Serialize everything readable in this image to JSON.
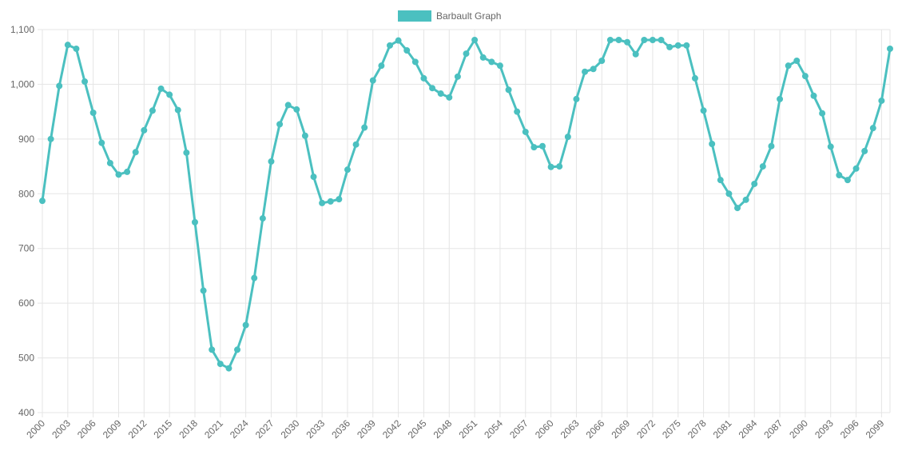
{
  "chart_data": {
    "type": "line",
    "x": [
      2000,
      2001,
      2002,
      2003,
      2004,
      2005,
      2006,
      2007,
      2008,
      2009,
      2010,
      2011,
      2012,
      2013,
      2014,
      2015,
      2016,
      2017,
      2018,
      2019,
      2020,
      2021,
      2022,
      2023,
      2024,
      2025,
      2026,
      2027,
      2028,
      2029,
      2030,
      2031,
      2032,
      2033,
      2034,
      2035,
      2036,
      2037,
      2038,
      2039,
      2040,
      2041,
      2042,
      2043,
      2044,
      2045,
      2046,
      2047,
      2048,
      2049,
      2050,
      2051,
      2052,
      2053,
      2054,
      2055,
      2056,
      2057,
      2058,
      2059,
      2060,
      2061,
      2062,
      2063,
      2064,
      2065,
      2066,
      2067,
      2068,
      2069,
      2070,
      2071,
      2072,
      2073,
      2074,
      2075,
      2076,
      2077,
      2078,
      2079,
      2080,
      2081,
      2082,
      2083,
      2084,
      2085,
      2086,
      2087,
      2088,
      2089,
      2090,
      2091,
      2092,
      2093,
      2094,
      2095,
      2096,
      2097,
      2098,
      2099,
      2100
    ],
    "series": [
      {
        "name": "Barbault Graph",
        "color": "#4bc0c0",
        "values": [
          787,
          900,
          997,
          1072,
          1065,
          1005,
          948,
          893,
          856,
          835,
          840,
          876,
          916,
          952,
          992,
          981,
          953,
          875,
          748,
          623,
          515,
          489,
          481,
          515,
          560,
          646,
          755,
          859,
          927,
          962,
          954,
          906,
          831,
          783,
          786,
          790,
          844,
          890,
          921,
          1007,
          1034,
          1071,
          1080,
          1062,
          1041,
          1011,
          993,
          983,
          976,
          1014,
          1056,
          1081,
          1049,
          1041,
          1034,
          990,
          950,
          913,
          885,
          887,
          849,
          850,
          904,
          973,
          1023,
          1028,
          1043,
          1081,
          1081,
          1077,
          1055,
          1081,
          1081,
          1081,
          1068,
          1071,
          1071,
          1011,
          952,
          891,
          825,
          800,
          774,
          789,
          818,
          850,
          887,
          973,
          1034,
          1043,
          1015,
          979,
          947,
          886,
          834,
          825,
          846,
          878,
          920,
          970,
          1065
        ]
      }
    ],
    "xlim": [
      2000,
      2100
    ],
    "xticks": [
      2000,
      2003,
      2006,
      2009,
      2012,
      2015,
      2018,
      2021,
      2024,
      2027,
      2030,
      2033,
      2036,
      2039,
      2042,
      2045,
      2048,
      2051,
      2054,
      2057,
      2060,
      2063,
      2066,
      2069,
      2072,
      2075,
      2078,
      2081,
      2084,
      2087,
      2090,
      2093,
      2096,
      2099
    ],
    "ylim": [
      400,
      1100
    ],
    "yticks": [
      400,
      500,
      600,
      700,
      800,
      900,
      {
        "value": 1000,
        "label": "1,000"
      },
      {
        "value": 1100,
        "label": "1,100"
      }
    ],
    "grid": true,
    "legend": "top"
  }
}
